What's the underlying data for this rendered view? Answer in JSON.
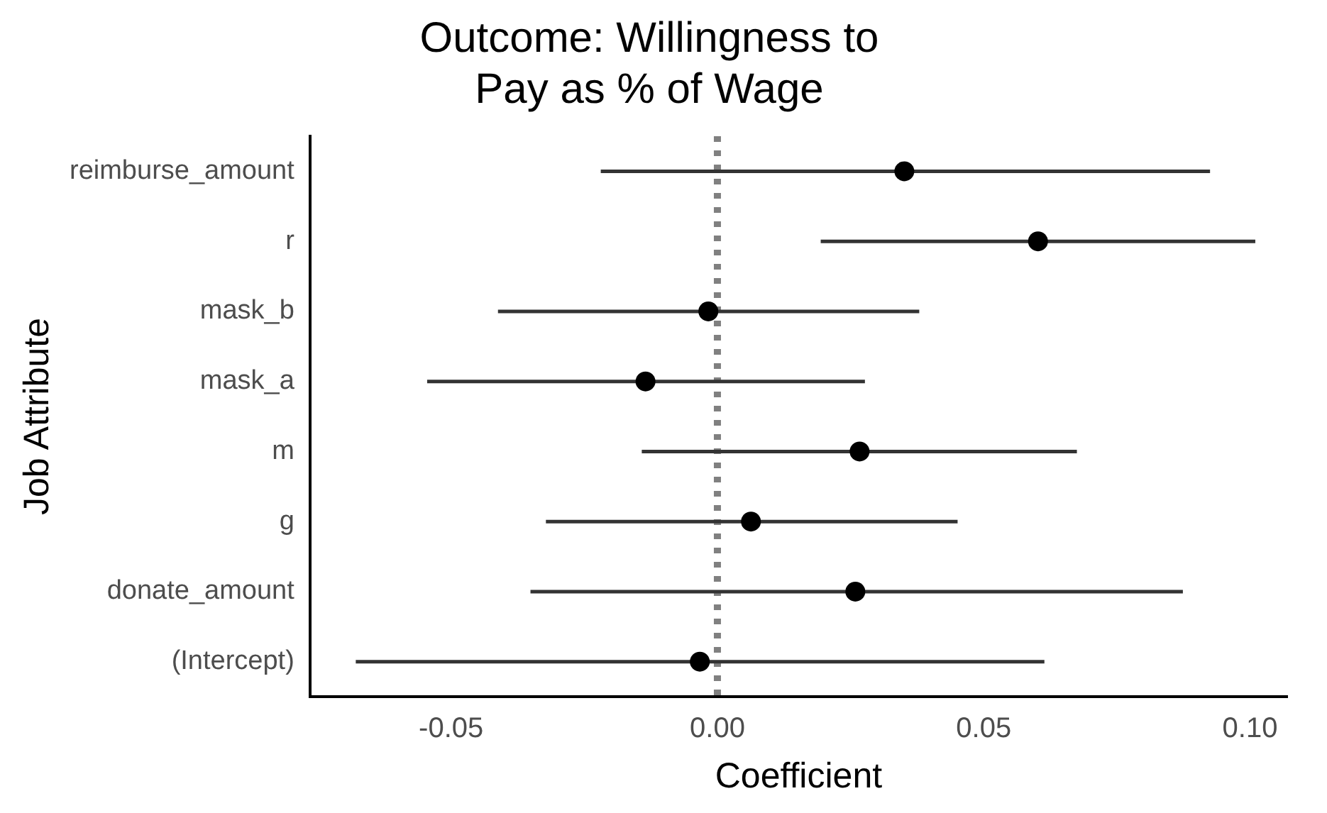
{
  "chart_data": {
    "type": "scatter",
    "orientation": "horizontal",
    "title": "Outcome: Willingness to Pay as % of Wage",
    "xlabel": "Coefficient",
    "ylabel": "Job Attribute",
    "categories": [
      "reimburse_amount",
      "r",
      "mask_b",
      "mask_a",
      "m",
      "g",
      "donate_amount",
      "(Intercept)"
    ],
    "values": [
      0.0351,
      0.0602,
      -0.0017,
      -0.0135,
      0.0267,
      0.0063,
      0.0259,
      -0.0033
    ],
    "errors": [
      [
        -0.0219,
        0.0925
      ],
      [
        0.0194,
        0.101
      ],
      [
        -0.0412,
        0.0379
      ],
      [
        -0.0545,
        0.0277
      ],
      [
        -0.0142,
        0.0675
      ],
      [
        -0.0322,
        0.0451
      ],
      [
        -0.0351,
        0.0874
      ],
      [
        -0.0679,
        0.0614
      ]
    ],
    "color": "#000000",
    "xlim": [
      -0.0765,
      0.107
    ],
    "xticks": [
      {
        "value": -0.05,
        "label": "-0.05"
      },
      {
        "value": 0,
        "label": "0.00"
      },
      {
        "value": 0.05,
        "label": "0.05"
      },
      {
        "value": 0.1,
        "label": "0.10"
      }
    ],
    "ref_lines": [
      {
        "axis": "x",
        "value": 0,
        "color": "#808080",
        "line_style": "dotted"
      }
    ],
    "marker": "circle",
    "grid": false,
    "legend": false
  }
}
